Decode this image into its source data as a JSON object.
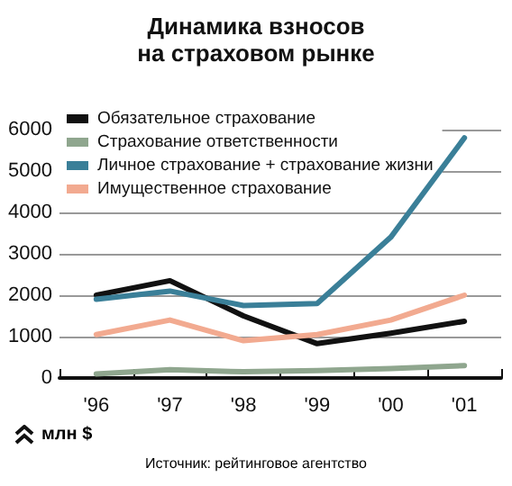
{
  "chart_data": {
    "type": "line",
    "title": "Динамика взносов\nна страховом рынке",
    "ylabel": "млн $",
    "annotations": [
      "Источник: рейтинговое агентство"
    ],
    "categories": [
      "'96",
      "'97",
      "'98",
      "'99",
      "'00",
      "'01"
    ],
    "series": [
      {
        "name": "Обязательное страхование",
        "color": "#111111",
        "values": [
          2000,
          2350,
          1500,
          830,
          1080,
          1370
        ]
      },
      {
        "name": "Страхование ответственности",
        "color": "#8fa68e",
        "values": [
          100,
          200,
          150,
          180,
          230,
          300
        ]
      },
      {
        "name": "Личное страхование + страхование жизни",
        "color": "#3a7f98",
        "values": [
          1900,
          2100,
          1750,
          1800,
          3400,
          5800
        ]
      },
      {
        "name": "Имущественное страхование",
        "color": "#f2aa90",
        "values": [
          1050,
          1400,
          900,
          1050,
          1400,
          2000
        ]
      }
    ],
    "ylim": [
      0,
      6000
    ],
    "yticks": [
      0,
      1000,
      2000,
      3000,
      4000,
      5000,
      6000
    ],
    "grid": "y",
    "legend": "top left",
    "marker": "none",
    "line_style": "solid"
  }
}
